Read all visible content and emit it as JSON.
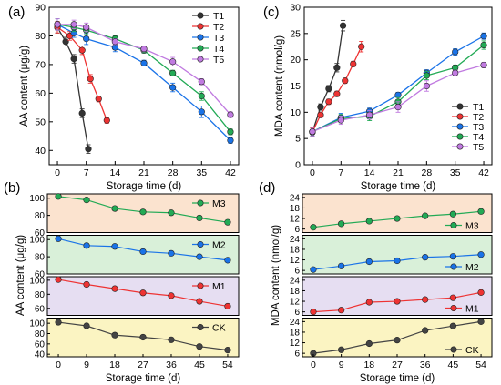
{
  "colors": {
    "T1": "#333333",
    "T2": "#ee3333",
    "T3": "#1a73e8",
    "T4": "#22aa55",
    "T5": "#c07ae0",
    "M3": "#22aa55",
    "M2": "#1a73e8",
    "M1": "#ee3333",
    "CK": "#444444",
    "band_M3": "#fbe3cf",
    "band_M2": "#d9f0d9",
    "band_M1": "#e6def2",
    "band_CK": "#fbf4c2"
  },
  "chart_data": [
    {
      "id": "a",
      "panel_label": "(a)",
      "type": "line",
      "xlabel": "Storage time (d)",
      "ylabel": "AA content (μg/g)",
      "xlim": [
        -2,
        44
      ],
      "ylim": [
        35,
        90
      ],
      "xticks": [
        0,
        7,
        14,
        21,
        28,
        35,
        42
      ],
      "yticks": [
        40,
        50,
        60,
        70,
        80,
        90
      ],
      "legend_position": "top-right",
      "series": [
        {
          "name": "T1",
          "x": [
            0,
            2,
            4,
            6,
            7.5
          ],
          "y": [
            83,
            78,
            72,
            53,
            40.5
          ],
          "err": [
            2,
            1.5,
            1.5,
            1.5,
            1.5
          ]
        },
        {
          "name": "T2",
          "x": [
            0,
            3,
            6,
            8,
            10,
            12
          ],
          "y": [
            83,
            80,
            75,
            65,
            58,
            50.5
          ],
          "err": [
            2,
            1.5,
            1.5,
            1.5,
            1,
            1
          ]
        },
        {
          "name": "T3",
          "x": [
            0,
            4,
            7,
            14,
            21,
            28,
            35,
            42
          ],
          "y": [
            84,
            81,
            79,
            76,
            70.5,
            62,
            53.5,
            43.5
          ],
          "err": [
            2,
            1.5,
            2,
            1.5,
            1,
            1.5,
            2,
            1
          ]
        },
        {
          "name": "T4",
          "x": [
            0,
            4,
            7,
            14,
            21,
            28,
            35,
            42
          ],
          "y": [
            84,
            83,
            82,
            79,
            75,
            67,
            59,
            46.5
          ],
          "err": [
            2,
            1.5,
            1.5,
            1,
            1,
            1,
            1.5,
            1
          ]
        },
        {
          "name": "T5",
          "x": [
            0,
            4,
            7,
            14,
            21,
            28,
            35,
            42
          ],
          "y": [
            84,
            84,
            83,
            78,
            75.5,
            71,
            64,
            52.5
          ],
          "err": [
            2,
            1.5,
            1.5,
            1,
            1,
            1.5,
            1,
            1
          ]
        }
      ]
    },
    {
      "id": "c",
      "panel_label": "(c)",
      "type": "line",
      "xlabel": "Storage time (d)",
      "ylabel": "MDA content (nmol/g)",
      "xlim": [
        -2,
        44
      ],
      "ylim": [
        0,
        30
      ],
      "xticks": [
        0,
        7,
        14,
        21,
        28,
        35,
        42
      ],
      "yticks": [
        0,
        5,
        10,
        15,
        20,
        25,
        30
      ],
      "legend_position": "bottom-right",
      "series": [
        {
          "name": "T1",
          "x": [
            0,
            2,
            4,
            6,
            7.5
          ],
          "y": [
            6.2,
            11,
            14.5,
            18.5,
            26.5
          ],
          "err": [
            0.8,
            0.6,
            0.6,
            0.8,
            1
          ]
        },
        {
          "name": "T2",
          "x": [
            0,
            2,
            4,
            6,
            8,
            10,
            12
          ],
          "y": [
            6.2,
            9.5,
            12,
            13.5,
            16,
            19.2,
            22.5
          ],
          "err": [
            0.8,
            0.5,
            0.5,
            0.5,
            0.5,
            0.5,
            1
          ]
        },
        {
          "name": "T3",
          "x": [
            0,
            7,
            14,
            21,
            28,
            35,
            42
          ],
          "y": [
            6.3,
            9,
            10.2,
            13.3,
            17.5,
            21.5,
            24.5
          ],
          "err": [
            0.8,
            0.8,
            0.6,
            0.5,
            0.6,
            0.6,
            0.6
          ]
        },
        {
          "name": "T4",
          "x": [
            0,
            7,
            14,
            21,
            28,
            35,
            42
          ],
          "y": [
            6.3,
            8.8,
            9.2,
            12,
            17,
            18.5,
            22.8
          ],
          "err": [
            0.8,
            0.8,
            0.8,
            0.8,
            0.8,
            0.5,
            0.8
          ]
        },
        {
          "name": "T5",
          "x": [
            0,
            7,
            14,
            21,
            28,
            35,
            42
          ],
          "y": [
            6.3,
            8.5,
            9.5,
            11,
            15,
            17.5,
            19
          ],
          "err": [
            0.8,
            0.8,
            0.8,
            1,
            1,
            0.5,
            0.5
          ]
        }
      ]
    },
    {
      "id": "b",
      "panel_label": "(b)",
      "type": "line",
      "xlabel": "Storage time (d)",
      "ylabel": "AA content (μg/g)",
      "xticks": [
        0,
        9,
        18,
        27,
        36,
        45,
        54
      ],
      "xlim": [
        -3.5,
        57.5
      ],
      "subplots": [
        {
          "name": "M3",
          "ylim": [
            60,
            105
          ],
          "yticks": [
            60,
            80,
            100
          ],
          "legend_position": "top-right",
          "x": [
            0,
            9,
            18,
            27,
            36,
            45,
            54
          ],
          "y": [
            102,
            98,
            88,
            84,
            83,
            77,
            72
          ]
        },
        {
          "name": "M2",
          "ylim": [
            60,
            105
          ],
          "yticks": [
            60,
            80,
            100
          ],
          "legend_position": "top-right",
          "x": [
            0,
            9,
            18,
            27,
            36,
            45,
            54
          ],
          "y": [
            101,
            93,
            92,
            86,
            84,
            80,
            76
          ]
        },
        {
          "name": "M1",
          "ylim": [
            50,
            105
          ],
          "yticks": [
            60,
            80,
            100
          ],
          "legend_position": "top-right",
          "x": [
            0,
            9,
            18,
            27,
            36,
            45,
            54
          ],
          "y": [
            101,
            94,
            88,
            82,
            78,
            70,
            63
          ]
        },
        {
          "name": "CK",
          "ylim": [
            35,
            110
          ],
          "yticks": [
            40,
            60,
            80,
            100
          ],
          "legend_position": "top-right",
          "x": [
            0,
            9,
            18,
            27,
            36,
            45,
            54
          ],
          "y": [
            102,
            95,
            77,
            73,
            68,
            55,
            48
          ]
        }
      ]
    },
    {
      "id": "d",
      "panel_label": "(d)",
      "type": "line",
      "xlabel": "Storage time (d)",
      "ylabel": "MDA content (nmol/g)",
      "xticks": [
        0,
        9,
        18,
        27,
        36,
        45,
        54
      ],
      "xlim": [
        -3.5,
        57.5
      ],
      "subplots": [
        {
          "name": "M3",
          "ylim": [
            4,
            26
          ],
          "yticks": [
            6,
            12,
            18,
            24
          ],
          "legend_position": "bottom-right",
          "x": [
            0,
            9,
            18,
            27,
            36,
            45,
            54
          ],
          "y": [
            7,
            9,
            10.5,
            12,
            13.5,
            14.5,
            16
          ]
        },
        {
          "name": "M2",
          "ylim": [
            4,
            26
          ],
          "yticks": [
            6,
            12,
            18,
            24
          ],
          "legend_position": "bottom-right",
          "x": [
            0,
            9,
            18,
            27,
            36,
            45,
            54
          ],
          "y": [
            6.5,
            8.5,
            11,
            11.5,
            13.5,
            14,
            15
          ]
        },
        {
          "name": "M1",
          "ylim": [
            4,
            26
          ],
          "yticks": [
            6,
            12,
            18,
            24
          ],
          "legend_position": "bottom-right",
          "x": [
            0,
            9,
            18,
            27,
            36,
            45,
            54
          ],
          "y": [
            6,
            7,
            11.5,
            12,
            13,
            14,
            17
          ]
        },
        {
          "name": "CK",
          "ylim": [
            4,
            26
          ],
          "yticks": [
            6,
            12,
            18,
            24
          ],
          "legend_position": "bottom-right",
          "x": [
            0,
            9,
            18,
            27,
            36,
            45,
            54
          ],
          "y": [
            6,
            8,
            11.5,
            13.5,
            19,
            21.5,
            24
          ]
        }
      ]
    }
  ]
}
